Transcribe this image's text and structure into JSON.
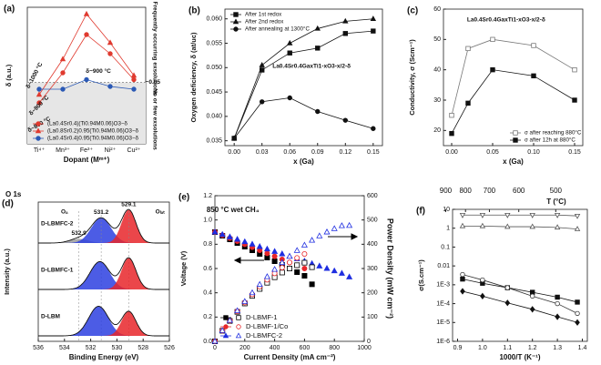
{
  "chart_data": [
    {
      "type": "line",
      "label": "(a)",
      "categories": [
        "Ti⁴⁺",
        "Mn³⁺",
        "Fe³⁺",
        "Ni²⁺",
        "Cu²⁺"
      ],
      "xlabel": "Dopant (Mᵐ⁺)",
      "ylabel": "δ (a.u.)",
      "ylim": [
        0,
        1
      ],
      "legend": "lower left",
      "threshold": 0.45,
      "series": [
        {
          "name": "(La0.4Sr0.4)(Ti0.94M0.06)O3−δ",
          "color": "#e03a2f",
          "marker": "circle",
          "filled": true,
          "values": [
            0.3,
            0.52,
            0.8,
            0.66,
            0.47
          ]
        },
        {
          "name": "(La0.8Sr0.2)0.95(Ti0.94M0.06)O3−δ",
          "color": "#e03a2f",
          "marker": "triangle",
          "filled": true,
          "values": [
            0.36,
            0.62,
            0.95,
            0.74,
            0.5
          ]
        },
        {
          "name": "(La0.4Sr0.4)0.95(Ti0.94M0.06)O3−δ",
          "color": "#2b59b5",
          "marker": "circle",
          "filled": true,
          "values": [
            0.4,
            0.4,
            0.47,
            0.42,
            0.4
          ]
        }
      ],
      "annotations": [
        "δ~1000 °C",
        "δ~900 °C",
        "δ~800 °C",
        "δ~900 °C",
        "Frequently occurring exsolutions",
        "No or few exsolutions",
        "~0.05"
      ]
    },
    {
      "type": "line",
      "label": "(b)",
      "xlabel": "x (Ga)",
      "ylabel": "Oxygen deficiency, δ (at/uc)",
      "xlim": [
        -0.01,
        0.16
      ],
      "ylim": [
        0.034,
        0.062
      ],
      "xticks": [
        {
          "value": 0,
          "label": "0.00"
        },
        0.03,
        0.06,
        0.09,
        0.12,
        0.15
      ],
      "yticks": [
        0.035,
        {
          "value": 0.04,
          "label": "0.040"
        },
        0.045,
        {
          "value": 0.05,
          "label": "0.050"
        },
        0.055,
        {
          "value": 0.06,
          "label": "0.060"
        }
      ],
      "x": [
        0,
        0.03,
        0.06,
        0.09,
        0.12,
        0.15
      ],
      "legend": "upper left",
      "series": [
        {
          "name": "After 1st redox",
          "color": "#111111",
          "marker": "square",
          "filled": true,
          "values": [
            0.0355,
            0.0495,
            0.053,
            0.054,
            0.057,
            0.0575
          ]
        },
        {
          "name": "After 2nd redox",
          "color": "#111111",
          "marker": "triangle",
          "filled": true,
          "values": [
            0.0355,
            0.0505,
            0.055,
            0.058,
            0.0595,
            0.06
          ]
        },
        {
          "name": "After annealing at 1300°C",
          "color": "#111111",
          "marker": "circle",
          "filled": true,
          "values": [
            0.0355,
            0.043,
            0.0438,
            0.041,
            0.0392,
            0.0375
          ]
        }
      ],
      "annotations": [
        "La0.4Sr0.4GaxTi1-xO3-x/2-δ"
      ]
    },
    {
      "type": "line",
      "label": "(c)",
      "xlabel": "x (Ga)",
      "ylabel": "Conductivity, σ (Scm⁻¹)",
      "xlim": [
        -0.01,
        0.16
      ],
      "ylim": [
        15,
        60
      ],
      "xticks": [
        {
          "value": 0,
          "label": "0.00"
        },
        0.05,
        {
          "value": 0.1,
          "label": "0.10"
        },
        0.15
      ],
      "yticks": [
        20,
        30,
        40,
        50,
        60
      ],
      "x": [
        0,
        0.02,
        0.05,
        0.1,
        0.15
      ],
      "legend": "lower right",
      "series": [
        {
          "name": "σ after reaching 880°C",
          "color": "#777777",
          "marker": "square",
          "filled": false,
          "values": [
            25,
            47,
            50,
            48,
            40
          ]
        },
        {
          "name": "σ after 12h at 880°C",
          "color": "#111111",
          "marker": "square",
          "filled": true,
          "values": [
            19,
            29,
            40,
            38,
            30
          ]
        }
      ],
      "annotations": [
        "La0.4Sr0.4GaxTi1-xO3-x/2-δ"
      ]
    },
    {
      "type": "xps",
      "label": "(d)",
      "title": "O 1s",
      "xlabel": "Binding Energy (eV)",
      "ylabel": "Intensity (a.u.)",
      "xlim": [
        536,
        526
      ],
      "xticks": [
        536,
        534,
        532,
        530,
        528,
        526
      ],
      "spectra": [
        {
          "name": "D-LBMFC-2",
          "peaks": [
            {
              "center": 532.9,
              "height": 0.12,
              "width": 0.7,
              "color": "#9a9a9a"
            },
            {
              "center": 531.2,
              "height": 0.72,
              "width": 0.75,
              "color": "#2d3fe0"
            },
            {
              "center": 529.1,
              "height": 0.95,
              "width": 0.55,
              "color": "#e8262a"
            }
          ]
        },
        {
          "name": "D-LBMFC-1",
          "peaks": [
            {
              "center": 531.3,
              "height": 0.8,
              "width": 0.75,
              "color": "#2d3fe0"
            },
            {
              "center": 529.1,
              "height": 0.9,
              "width": 0.55,
              "color": "#e8262a"
            }
          ]
        },
        {
          "name": "D-LBM",
          "peaks": [
            {
              "center": 531.4,
              "height": 0.85,
              "width": 0.75,
              "color": "#2d3fe0"
            },
            {
              "center": 529.1,
              "height": 0.7,
              "width": 0.55,
              "color": "#e8262a"
            }
          ]
        }
      ],
      "annotations": [
        "Oₐ",
        "Oₗₐₜ"
      ]
    },
    {
      "type": "line",
      "label": "(e)",
      "xlabel": "Current Density (mA cm⁻²)",
      "ylabel": "Voltage (V)",
      "y2label": "Power Density (mW cm⁻²)",
      "xlim": [
        0,
        1000
      ],
      "ylim": [
        0,
        1.2
      ],
      "y2lim": [
        0,
        600
      ],
      "xticks": [
        0,
        200,
        400,
        600,
        800,
        1000
      ],
      "yticks": [
        {
          "value": 0,
          "label": "0.0"
        },
        0.2,
        0.4,
        0.6,
        0.8,
        {
          "value": 1,
          "label": "1.0"
        },
        1.2
      ],
      "y2ticks": [
        0,
        100,
        200,
        300,
        400,
        500,
        600
      ],
      "legend": "lower left",
      "series": [
        {
          "name": "D-LBMF-1",
          "color": "#000000",
          "marker": "square",
          "filled": true,
          "x": [
            0,
            50,
            100,
            150,
            200,
            250,
            300,
            350,
            400,
            450,
            500,
            550,
            600,
            650
          ],
          "values": [
            0.9,
            0.87,
            0.84,
            0.81,
            0.78,
            0.75,
            0.72,
            0.69,
            0.66,
            0.63,
            0.6,
            0.57,
            0.54,
            0.47
          ]
        },
        {
          "name": "D-LBMF-1/Co",
          "color": "#e8262a",
          "marker": "circle",
          "filled": true,
          "x": [
            0,
            50,
            100,
            150,
            200,
            250,
            300,
            350,
            400,
            450,
            500,
            550,
            600
          ],
          "values": [
            0.9,
            0.875,
            0.85,
            0.825,
            0.8,
            0.775,
            0.75,
            0.725,
            0.7,
            0.675,
            0.65,
            0.625,
            0.6
          ]
        },
        {
          "name": "D-LBMFC-2",
          "color": "#1f2ee0",
          "marker": "triangle",
          "filled": true,
          "x": [
            0,
            50,
            100,
            150,
            200,
            250,
            300,
            350,
            400,
            450,
            500,
            550,
            600,
            650,
            700,
            750,
            800,
            850,
            900
          ],
          "values": [
            0.9,
            0.88,
            0.86,
            0.84,
            0.82,
            0.8,
            0.78,
            0.76,
            0.74,
            0.72,
            0.7,
            0.68,
            0.66,
            0.64,
            0.62,
            0.6,
            0.58,
            0.56,
            0.53
          ]
        },
        {
          "axis": "y2",
          "color": "#000000",
          "marker": "square",
          "filled": false,
          "x": [
            0,
            50,
            100,
            150,
            200,
            250,
            300,
            350,
            400,
            450,
            500,
            550,
            600,
            650
          ],
          "values": [
            0,
            43.5,
            84,
            121.5,
            156,
            187.5,
            216,
            241.5,
            264,
            283.5,
            300,
            313.5,
            324,
            305.5
          ]
        },
        {
          "axis": "y2",
          "color": "#e8262a",
          "marker": "circle",
          "filled": false,
          "x": [
            0,
            50,
            100,
            150,
            200,
            250,
            300,
            350,
            400,
            450,
            500,
            550,
            600
          ],
          "values": [
            0,
            43.75,
            85,
            123.75,
            160,
            193.75,
            225,
            253.75,
            280,
            303.75,
            325,
            343.75,
            360
          ]
        },
        {
          "axis": "y2",
          "color": "#1f2ee0",
          "marker": "triangle",
          "filled": false,
          "x": [
            0,
            50,
            100,
            150,
            200,
            250,
            300,
            350,
            400,
            450,
            500,
            550,
            600,
            650,
            700,
            750,
            800,
            850,
            900
          ],
          "values": [
            0,
            44,
            86,
            126,
            164,
            200,
            234,
            266,
            296,
            324,
            350,
            374,
            396,
            416,
            434,
            450,
            464,
            476,
            477
          ]
        }
      ],
      "annotations": [
        "850 °C  wet CH₄"
      ]
    },
    {
      "type": "line",
      "label": "(f)",
      "xlabel": "1000/T (K⁻¹)",
      "ylabel": "σ(S.cm⁻¹)",
      "x2label": "T (°C)",
      "log": true,
      "xlim": [
        0.88,
        1.42
      ],
      "ylim": [
        1e-06,
        10
      ],
      "xticks": [
        0.9,
        {
          "value": 1,
          "label": "1.0"
        },
        1.1,
        1.2,
        1.3,
        1.4
      ],
      "x2ticks": [
        900,
        800,
        700,
        600,
        500
      ],
      "yticks": [
        {
          "value": 1e-06,
          "label": "1E-6"
        },
        {
          "value": 1e-05,
          "label": "1E-5"
        },
        {
          "value": 0.0001,
          "label": "1E-4"
        },
        {
          "value": 0.001,
          "label": "1E-3"
        },
        0.01,
        0.1,
        1,
        10
      ],
      "x": [
        0.92,
        1.0,
        1.1,
        1.2,
        1.3,
        1.38
      ],
      "series": [
        {
          "color": "#555555",
          "marker": "tri-down",
          "filled": false,
          "values": [
            5,
            5,
            5,
            5,
            5,
            4.5
          ]
        },
        {
          "color": "#555555",
          "marker": "triangle",
          "filled": false,
          "values": [
            1.3,
            1.3,
            1.2,
            1.2,
            1.1,
            0.9
          ]
        },
        {
          "color": "#111111",
          "marker": "square",
          "filled": true,
          "values": [
            0.002,
            0.0012,
            0.0007,
            0.0004,
            0.00022,
            0.00012
          ]
        },
        {
          "color": "#333333",
          "marker": "circle",
          "filled": false,
          "values": [
            0.0035,
            0.0018,
            0.0007,
            0.00025,
            0.0001,
            3e-05
          ]
        },
        {
          "color": "#111111",
          "marker": "diamond",
          "filled": true,
          "values": [
            0.00045,
            0.00025,
            0.00011,
            5e-05,
            2e-05,
            1e-05
          ]
        }
      ]
    }
  ]
}
